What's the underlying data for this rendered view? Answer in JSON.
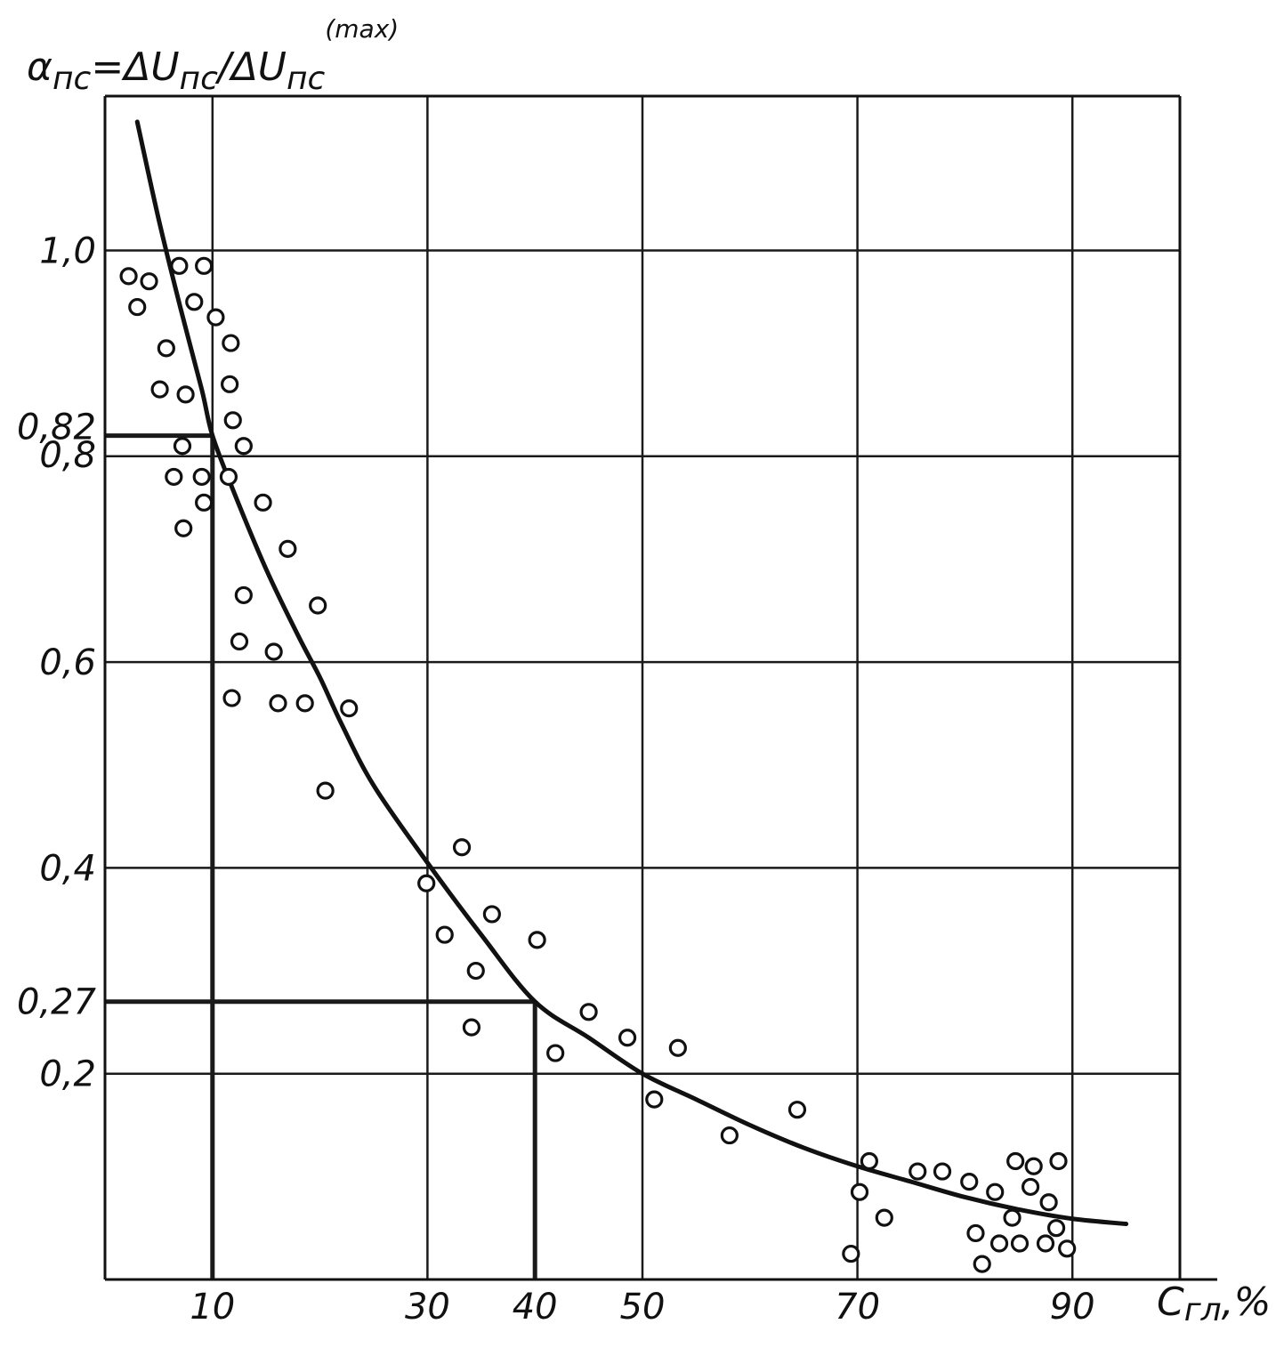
{
  "chart_data": {
    "type": "scatter",
    "title": "",
    "ylabel": {
      "alpha": "α",
      "alpha_sub": "пс",
      "eq": "=ΔU",
      "num_sub": "пс",
      "slash": "/ΔU",
      "den_sub": "пс",
      "den_sup": "(max)"
    },
    "xlabel": {
      "main": "C",
      "sub": "гл",
      "unit": ",%"
    },
    "xlim": [
      0,
      100
    ],
    "ylim": [
      0,
      1.15
    ],
    "x_ticks": [
      {
        "value": 10,
        "label": "10"
      },
      {
        "value": 30,
        "label": "30"
      },
      {
        "value": 40,
        "label": "40"
      },
      {
        "value": 50,
        "label": "50"
      },
      {
        "value": 70,
        "label": "70"
      },
      {
        "value": 90,
        "label": "90"
      }
    ],
    "y_ticks": [
      {
        "value": 0.2,
        "label": "0,2"
      },
      {
        "value": 0.27,
        "label": "0,27"
      },
      {
        "value": 0.4,
        "label": "0,4"
      },
      {
        "value": 0.6,
        "label": "0,6"
      },
      {
        "value": 0.8,
        "label": "0,8"
      },
      {
        "value": 0.82,
        "label": "0,82"
      },
      {
        "value": 1.0,
        "label": "1,0"
      }
    ],
    "x_gridlines": [
      10,
      30,
      50,
      70,
      90
    ],
    "y_gridlines": [
      0.2,
      0.4,
      0.6,
      0.8,
      1.0
    ],
    "grid": true,
    "reference_lines": [
      {
        "x": 10,
        "y": 0.82
      },
      {
        "x": 40,
        "y": 0.27
      }
    ],
    "series": [
      {
        "type": "scatter",
        "points": [
          [
            2.2,
            0.975
          ],
          [
            3.0,
            0.945
          ],
          [
            4.1,
            0.97
          ],
          [
            6.9,
            0.985
          ],
          [
            9.2,
            0.985
          ],
          [
            8.3,
            0.95
          ],
          [
            10.3,
            0.935
          ],
          [
            11.7,
            0.91
          ],
          [
            5.7,
            0.905
          ],
          [
            5.1,
            0.865
          ],
          [
            7.5,
            0.86
          ],
          [
            11.6,
            0.87
          ],
          [
            11.9,
            0.835
          ],
          [
            12.9,
            0.81
          ],
          [
            7.2,
            0.81
          ],
          [
            6.4,
            0.78
          ],
          [
            9.0,
            0.78
          ],
          [
            11.5,
            0.78
          ],
          [
            9.2,
            0.755
          ],
          [
            14.7,
            0.755
          ],
          [
            7.3,
            0.73
          ],
          [
            17.0,
            0.71
          ],
          [
            12.9,
            0.665
          ],
          [
            19.8,
            0.655
          ],
          [
            12.5,
            0.62
          ],
          [
            15.7,
            0.61
          ],
          [
            11.8,
            0.565
          ],
          [
            16.1,
            0.56
          ],
          [
            18.6,
            0.56
          ],
          [
            22.7,
            0.555
          ],
          [
            20.5,
            0.475
          ],
          [
            33.2,
            0.42
          ],
          [
            29.9,
            0.385
          ],
          [
            31.6,
            0.335
          ],
          [
            36.0,
            0.355
          ],
          [
            34.5,
            0.3
          ],
          [
            40.2,
            0.33
          ],
          [
            34.1,
            0.245
          ],
          [
            45.0,
            0.26
          ],
          [
            41.9,
            0.22
          ],
          [
            48.6,
            0.235
          ],
          [
            53.3,
            0.225
          ],
          [
            51.1,
            0.175
          ],
          [
            64.4,
            0.165
          ],
          [
            58.1,
            0.14
          ],
          [
            71.1,
            0.115
          ],
          [
            75.6,
            0.105
          ],
          [
            70.2,
            0.085
          ],
          [
            72.5,
            0.06
          ],
          [
            69.4,
            0.025
          ],
          [
            77.9,
            0.105
          ],
          [
            80.4,
            0.095
          ],
          [
            82.8,
            0.085
          ],
          [
            84.7,
            0.115
          ],
          [
            86.4,
            0.11
          ],
          [
            88.7,
            0.115
          ],
          [
            84.4,
            0.06
          ],
          [
            86.1,
            0.09
          ],
          [
            87.8,
            0.075
          ],
          [
            81.0,
            0.045
          ],
          [
            83.2,
            0.035
          ],
          [
            85.1,
            0.035
          ],
          [
            87.5,
            0.035
          ],
          [
            88.5,
            0.05
          ],
          [
            89.5,
            0.03
          ],
          [
            81.6,
            0.015
          ]
        ]
      },
      {
        "type": "line",
        "points": [
          [
            3.0,
            1.125
          ],
          [
            5.0,
            1.03
          ],
          [
            7.0,
            0.945
          ],
          [
            9.0,
            0.865
          ],
          [
            10.0,
            0.82
          ],
          [
            12.0,
            0.765
          ],
          [
            15.0,
            0.69
          ],
          [
            18.0,
            0.625
          ],
          [
            20.0,
            0.585
          ],
          [
            22.0,
            0.54
          ],
          [
            25.0,
            0.48
          ],
          [
            30.0,
            0.405
          ],
          [
            35.0,
            0.335
          ],
          [
            40.0,
            0.27
          ],
          [
            45.0,
            0.235
          ],
          [
            50.0,
            0.2
          ],
          [
            55.0,
            0.175
          ],
          [
            60.0,
            0.15
          ],
          [
            65.0,
            0.128
          ],
          [
            70.0,
            0.11
          ],
          [
            75.0,
            0.095
          ],
          [
            80.0,
            0.08
          ],
          [
            85.0,
            0.068
          ],
          [
            90.0,
            0.059
          ],
          [
            95.0,
            0.054
          ]
        ]
      }
    ]
  }
}
